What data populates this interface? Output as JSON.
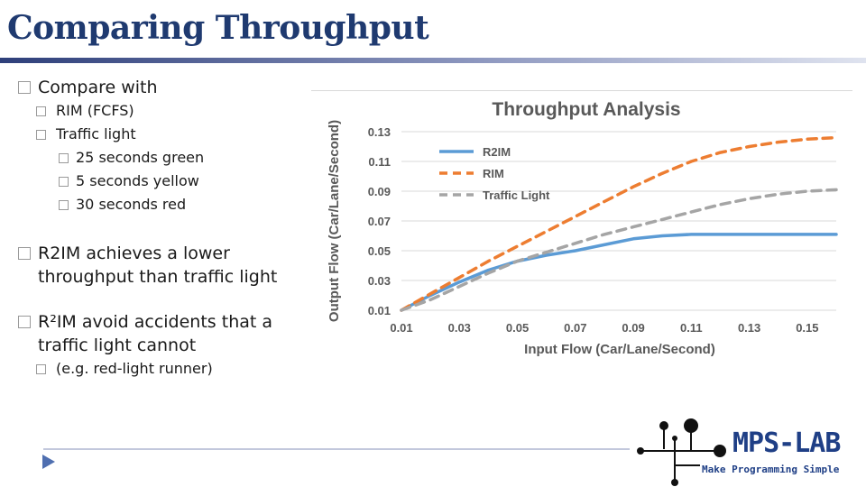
{
  "slide": {
    "title": "Comparing Throughput"
  },
  "bullets": {
    "compare": "Compare with",
    "rim": "RIM (FCFS)",
    "traffic": "Traffic light",
    "green": "25 seconds green",
    "yellow": "5 seconds yellow",
    "red": "30 seconds red",
    "r2im_lower": "R2IM achieves a lower throughput than traffic light",
    "r2im_accidents": "R²IM avoid accidents that a traffic light cannot",
    "example": "(e.g. red-light runner)"
  },
  "logo": {
    "name": "MPS-LAB",
    "tagline": "Make Programming Simple"
  },
  "chart_data": {
    "type": "line",
    "title": "Throughput Analysis",
    "xlabel": "Input Flow (Car/Lane/Second)",
    "ylabel": "Output Flow (Car/Lane/Second)",
    "xlim": [
      0.01,
      0.16
    ],
    "ylim": [
      0.01,
      0.13
    ],
    "x_ticks": [
      0.01,
      0.03,
      0.05,
      0.07,
      0.09,
      0.11,
      0.13,
      0.15
    ],
    "y_ticks": [
      0.01,
      0.03,
      0.05,
      0.07,
      0.09,
      0.11,
      0.13
    ],
    "x_tick_labels": [
      "0.01",
      "0.03",
      "0.05",
      "0.07",
      "0.09",
      "0.11",
      "0.13",
      "0.15"
    ],
    "y_tick_labels": [
      "0.01",
      "0.03",
      "0.05",
      "0.07",
      "0.09",
      "0.11",
      "0.13"
    ],
    "legend_position": "top-left",
    "grid": true,
    "series": [
      {
        "name": "R2IM",
        "color": "#5b9bd5",
        "dash": "solid",
        "x": [
          0.01,
          0.02,
          0.03,
          0.04,
          0.05,
          0.06,
          0.07,
          0.08,
          0.09,
          0.1,
          0.11,
          0.12,
          0.13,
          0.14,
          0.15,
          0.16
        ],
        "y": [
          0.01,
          0.02,
          0.029,
          0.037,
          0.043,
          0.047,
          0.05,
          0.054,
          0.058,
          0.06,
          0.061,
          0.061,
          0.061,
          0.061,
          0.061,
          0.061
        ]
      },
      {
        "name": "RIM",
        "color": "#ed7d31",
        "dash": "dashed",
        "x": [
          0.01,
          0.02,
          0.03,
          0.04,
          0.05,
          0.06,
          0.07,
          0.08,
          0.09,
          0.1,
          0.11,
          0.12,
          0.13,
          0.14,
          0.15,
          0.16
        ],
        "y": [
          0.01,
          0.021,
          0.032,
          0.043,
          0.053,
          0.063,
          0.073,
          0.083,
          0.093,
          0.102,
          0.11,
          0.116,
          0.12,
          0.123,
          0.125,
          0.126
        ]
      },
      {
        "name": "Traffic Light",
        "color": "#a5a5a5",
        "dash": "dashed",
        "x": [
          0.01,
          0.02,
          0.03,
          0.04,
          0.05,
          0.06,
          0.07,
          0.08,
          0.09,
          0.1,
          0.11,
          0.12,
          0.13,
          0.14,
          0.15,
          0.16
        ],
        "y": [
          0.01,
          0.017,
          0.026,
          0.035,
          0.043,
          0.049,
          0.055,
          0.061,
          0.066,
          0.071,
          0.076,
          0.081,
          0.085,
          0.088,
          0.09,
          0.091
        ]
      }
    ]
  }
}
